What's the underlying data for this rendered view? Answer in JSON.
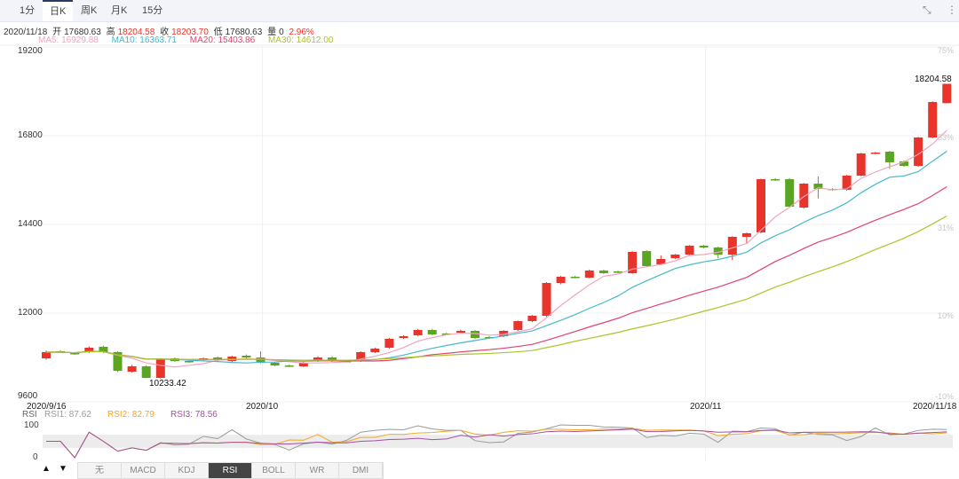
{
  "tabs": [
    {
      "label": "1分"
    },
    {
      "label": "日K",
      "active": true
    },
    {
      "label": "周K"
    },
    {
      "label": "月K"
    },
    {
      "label": "15分"
    }
  ],
  "icons": {
    "collapse": "collapse-arrows-icon",
    "more": "more-vertical-icon"
  },
  "info": {
    "date": "2020/11/18",
    "open_label": "开",
    "open": "17680.63",
    "high_label": "高",
    "high": "18204.58",
    "close_label": "收",
    "close": "18203.70",
    "low_label": "低",
    "low": "17680.63",
    "vol_label": "量",
    "vol": "0",
    "change": "2.96%"
  },
  "ma": {
    "ma5": "MA5: 16929.88",
    "ma10": "MA10: 16363.71",
    "ma20": "MA20: 15403.86",
    "ma30": "MA30: 14612.00"
  },
  "colors": {
    "up": "#e8342b",
    "down": "#5aa521",
    "ma5": "#f2a5bd",
    "ma10": "#45b9cb",
    "ma20": "#e0446e",
    "ma30": "#a9c628",
    "rsi1": "#9a9a9a",
    "rsi2": "#f5a623",
    "rsi3": "#a2509e"
  },
  "chart_data": {
    "type": "candlestick",
    "y_ticks": [
      "19200",
      "16800",
      "14400",
      "12000",
      "9600"
    ],
    "y_ticks_values": [
      19200,
      16800,
      14400,
      12000,
      9600
    ],
    "pct_ticks": [
      "75%",
      "53%",
      "31%",
      "10%",
      "-10%"
    ],
    "x_labels": [
      "2020/9/16",
      "2020/10",
      "2020/11",
      "2020/11/18"
    ],
    "x_label_index": [
      0,
      15,
      46,
      63
    ],
    "max_label": "18204.58",
    "min_label": "10233.42",
    "max_index": 63,
    "min_index": 8,
    "ohlc": [
      [
        10776,
        10990,
        10740,
        10944
      ],
      [
        10968,
        11000,
        10920,
        10944
      ],
      [
        10920,
        10950,
        10870,
        10896
      ],
      [
        10944,
        11100,
        10920,
        11064
      ],
      [
        11088,
        11120,
        10920,
        10944
      ],
      [
        10944,
        10970,
        10410,
        10440
      ],
      [
        10416,
        10600,
        10390,
        10560
      ],
      [
        10560,
        10590,
        10240,
        10248
      ],
      [
        10248,
        10780,
        10233.42,
        10752
      ],
      [
        10776,
        10800,
        10680,
        10704
      ],
      [
        10704,
        10730,
        10660,
        10680
      ],
      [
        10728,
        10800,
        10700,
        10776
      ],
      [
        10800,
        10830,
        10700,
        10728
      ],
      [
        10704,
        10850,
        10680,
        10824
      ],
      [
        10848,
        10880,
        10780,
        10800
      ],
      [
        10800,
        10960,
        10640,
        10656
      ],
      [
        10656,
        10680,
        10560,
        10584
      ],
      [
        10584,
        10610,
        10540,
        10560
      ],
      [
        10560,
        10680,
        10540,
        10656
      ],
      [
        10704,
        10830,
        10680,
        10800
      ],
      [
        10800,
        10830,
        10680,
        10704
      ],
      [
        10704,
        10730,
        10660,
        10680
      ],
      [
        10704,
        10970,
        10680,
        10944
      ],
      [
        10944,
        11070,
        10920,
        11040
      ],
      [
        11064,
        11330,
        11040,
        11304
      ],
      [
        11328,
        11400,
        11300,
        11376
      ],
      [
        11400,
        11570,
        11380,
        11544
      ],
      [
        11544,
        11570,
        11400,
        11424
      ],
      [
        11448,
        11470,
        11400,
        11424
      ],
      [
        11472,
        11550,
        11450,
        11520
      ],
      [
        11520,
        11540,
        11300,
        11328
      ],
      [
        11352,
        11380,
        11300,
        11328
      ],
      [
        11376,
        11540,
        11350,
        11520
      ],
      [
        11544,
        11800,
        11520,
        11784
      ],
      [
        11784,
        11950,
        11760,
        11928
      ],
      [
        11928,
        12840,
        11900,
        12816
      ],
      [
        12816,
        13010,
        12780,
        12984
      ],
      [
        12984,
        13010,
        12940,
        12960
      ],
      [
        12960,
        13180,
        12940,
        13152
      ],
      [
        13152,
        13180,
        13060,
        13080
      ],
      [
        13128,
        13150,
        13080,
        13104
      ],
      [
        13080,
        13680,
        13060,
        13656
      ],
      [
        13680,
        13700,
        13250,
        13272
      ],
      [
        13320,
        13560,
        13300,
        13464
      ],
      [
        13488,
        13600,
        13460,
        13584
      ],
      [
        13584,
        13840,
        13560,
        13824
      ],
      [
        13824,
        13850,
        13750,
        13776
      ],
      [
        13776,
        13800,
        13480,
        13584
      ],
      [
        13584,
        14080,
        13440,
        14064
      ],
      [
        14064,
        14180,
        13900,
        14160
      ],
      [
        14184,
        15640,
        14160,
        15624
      ],
      [
        15624,
        15650,
        15580,
        15600
      ],
      [
        15624,
        15650,
        14860,
        14880
      ],
      [
        14856,
        15520,
        14830,
        15504
      ],
      [
        15504,
        15700,
        15100,
        15360
      ],
      [
        15360,
        15380,
        15310,
        15336
      ],
      [
        15336,
        15740,
        15310,
        15720
      ],
      [
        15720,
        16340,
        15700,
        16320
      ],
      [
        16320,
        16360,
        16300,
        16344
      ],
      [
        16368,
        16390,
        15900,
        16080
      ],
      [
        16104,
        16130,
        15960,
        15984
      ],
      [
        15984,
        16770,
        15960,
        16752
      ],
      [
        16752,
        17730,
        16730,
        17712
      ],
      [
        17680.63,
        18204.58,
        17680.63,
        18203.7
      ]
    ],
    "ma_periods": [
      5,
      10,
      20,
      30
    ],
    "rsi": {
      "label": "RSI",
      "rsi1": "RSI1: 87.62",
      "rsi2": "RSI2: 82.79",
      "rsi3": "RSI3: 78.56",
      "periods": [
        6,
        12,
        24
      ],
      "y_ticks": [
        "100",
        "0"
      ],
      "band": [
        30,
        70
      ]
    }
  },
  "indicator_buttons": [
    {
      "label": "无"
    },
    {
      "label": "MACD"
    },
    {
      "label": "KDJ"
    },
    {
      "label": "RSI",
      "active": true
    },
    {
      "label": "BOLL"
    },
    {
      "label": "WR"
    },
    {
      "label": "DMI"
    }
  ],
  "nav": {
    "up": "▲",
    "down": "▼"
  }
}
